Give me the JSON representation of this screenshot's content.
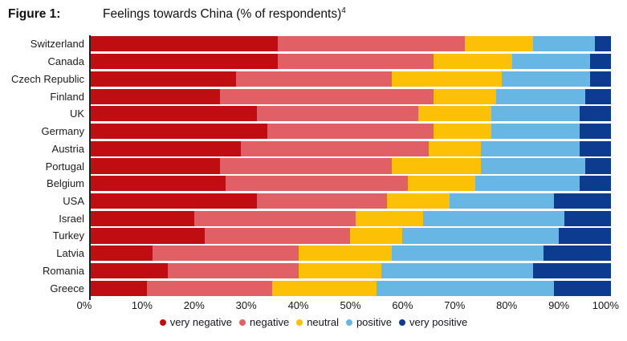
{
  "figure": {
    "label": "Figure 1:",
    "title": "Feelings towards China (% of respondents)",
    "footnote_marker": "4"
  },
  "chart_data": {
    "type": "bar",
    "stacked": true,
    "orientation": "horizontal",
    "title": "Feelings towards China (% of respondents)",
    "xlabel": "",
    "ylabel": "",
    "xlim": [
      0,
      100
    ],
    "grid": false,
    "legend_position": "bottom",
    "x_ticks": [
      "0%",
      "10%",
      "20%",
      "30%",
      "40%",
      "50%",
      "60%",
      "70%",
      "80%",
      "90%",
      "100%"
    ],
    "categories": [
      "Switzerland",
      "Canada",
      "Czech Republic",
      "Finland",
      "UK",
      "Germany",
      "Austria",
      "Portugal",
      "Belgium",
      "USA",
      "Israel",
      "Turkey",
      "Latvia",
      "Romania",
      "Greece"
    ],
    "series": [
      {
        "name": "very negative",
        "color": "#c00d12",
        "values": [
          36,
          36,
          28,
          25,
          32,
          34,
          29,
          25,
          26,
          32,
          20,
          22,
          12,
          15,
          11
        ]
      },
      {
        "name": "negative",
        "color": "#e06065",
        "values": [
          36,
          30,
          30,
          41,
          31,
          32,
          36,
          33,
          35,
          25,
          31,
          28,
          28,
          25,
          24
        ]
      },
      {
        "name": "neutral",
        "color": "#fcc107",
        "values": [
          13,
          15,
          21,
          12,
          14,
          11,
          10,
          17,
          13,
          12,
          13,
          10,
          18,
          16,
          20
        ]
      },
      {
        "name": "positive",
        "color": "#67b6e4",
        "values": [
          12,
          15,
          17,
          17,
          17,
          17,
          19,
          20,
          20,
          20,
          27,
          30,
          29,
          29,
          34
        ]
      },
      {
        "name": "very positive",
        "color": "#0c3b90",
        "values": [
          3,
          4,
          4,
          5,
          6,
          6,
          6,
          5,
          6,
          11,
          9,
          10,
          13,
          15,
          11
        ]
      }
    ]
  }
}
